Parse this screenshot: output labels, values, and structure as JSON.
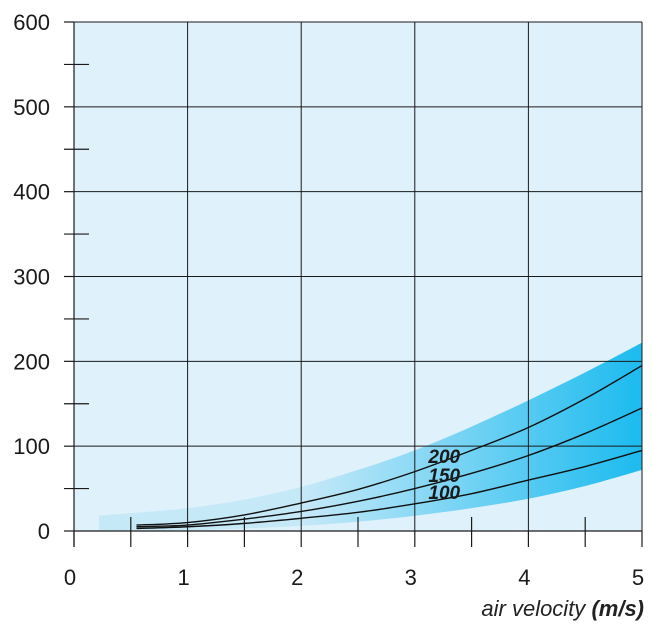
{
  "chart_data": {
    "type": "line",
    "x_ticks": [
      "0",
      "1",
      "2",
      "3",
      "4",
      "5"
    ],
    "y_ticks": [
      "0",
      "100",
      "200",
      "300",
      "400",
      "500",
      "600"
    ],
    "xlim": [
      0,
      5
    ],
    "ylim": [
      0,
      600
    ],
    "x_minor_step": 0.5,
    "y_minor_step": 50,
    "grid": true,
    "xlabel": "air velocity",
    "xlabel_unit": "(m/s)",
    "band": {
      "x": [
        0.22,
        0.5,
        1.0,
        1.5,
        2.0,
        2.5,
        3.0,
        3.5,
        4.0,
        4.5,
        5.0
      ],
      "lower": [
        1,
        1,
        1,
        3,
        6,
        11,
        18,
        27,
        38,
        53,
        72
      ],
      "upper": [
        18,
        21,
        27,
        37,
        52,
        72,
        95,
        123,
        154,
        187,
        222
      ]
    },
    "series": [
      {
        "name": "200",
        "x": [
          0.55,
          1.0,
          1.5,
          2.0,
          2.5,
          3.0,
          3.5,
          4.0,
          4.5,
          5.0
        ],
        "values": [
          7,
          10,
          19,
          33,
          49,
          70,
          95,
          122,
          156,
          195
        ]
      },
      {
        "name": "150",
        "x": [
          0.55,
          1.0,
          1.5,
          2.0,
          2.5,
          3.0,
          3.5,
          4.0,
          4.5,
          5.0
        ],
        "values": [
          5,
          7,
          14,
          23,
          35,
          50,
          68,
          89,
          115,
          145
        ]
      },
      {
        "name": "100",
        "x": [
          0.55,
          1.0,
          1.5,
          2.0,
          2.5,
          3.0,
          3.5,
          4.0,
          4.5,
          5.0
        ],
        "values": [
          3,
          5,
          9,
          15,
          22,
          32,
          44,
          60,
          76,
          95
        ]
      }
    ],
    "colors": {
      "plot_background": "#dff1fb",
      "band_light": "#c6e9f8",
      "band_dark": "#1cbbef",
      "grid": "#1a1a1a",
      "curve": "#111111"
    }
  }
}
